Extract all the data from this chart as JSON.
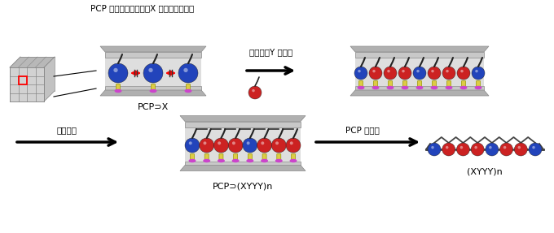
{
  "bg_color": "#ffffff",
  "title_text": "PCP 構造内でモノマーX が等間隔に配置",
  "label_pcp_x": "PCP⊃X",
  "label_pcp_xy": "PCP⊃(XYYY)n",
  "label_polymer": "(XYYY)n",
  "label_monomer_y": "モノマーY を吸着",
  "label_coupling": "連結反応",
  "label_remove": "PCP を除去",
  "blue_color": "#2244bb",
  "red_color": "#cc2222",
  "gray_light": "#cccccc",
  "gray_mid": "#bbbbbb",
  "gray_dark": "#999999",
  "yellow_color": "#ddcc44",
  "magenta_color": "#cc44cc",
  "arrow_color": "#111111"
}
